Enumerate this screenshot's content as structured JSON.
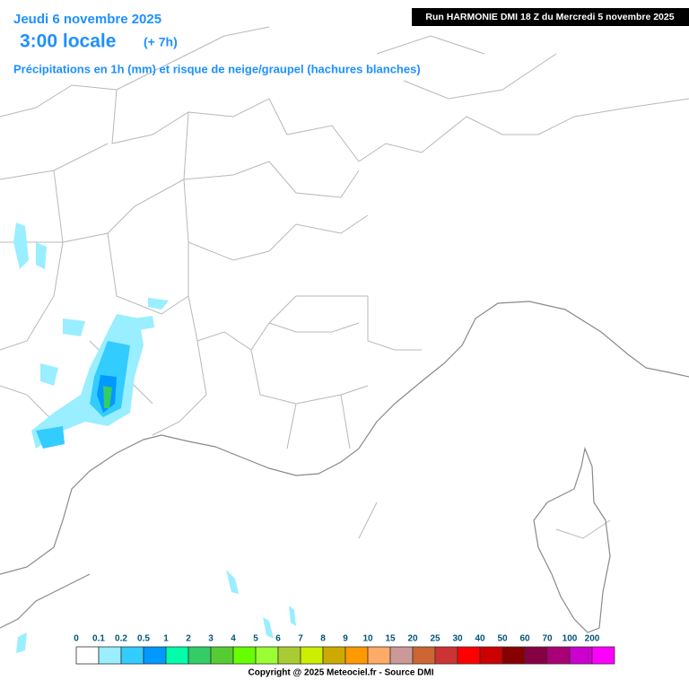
{
  "header": {
    "date": "Jeudi 6 novembre 2025",
    "time": "3:00 locale",
    "lead": "(+ 7h)",
    "subtitle": "Précipitations en 1h (mm) et risque de neige/graupel (hachures blanches)"
  },
  "run": "Run HARMONIE DMI 18 Z du Mercredi 5 novembre 2025",
  "legend": {
    "labels": [
      "0",
      "0.1",
      "0.2",
      "0.5",
      "1",
      "2",
      "3",
      "4",
      "5",
      "6",
      "7",
      "8",
      "9",
      "10",
      "15",
      "20",
      "25",
      "30",
      "40",
      "50",
      "60",
      "70",
      "100",
      "200"
    ],
    "colors": [
      "#ffffff",
      "#99eeff",
      "#33ccff",
      "#0099ff",
      "#00ffaa",
      "#33cc66",
      "#55cc33",
      "#66ff00",
      "#99ff33",
      "#aacc33",
      "#ccee00",
      "#ccaa00",
      "#ff9900",
      "#ffaa66",
      "#cc9999",
      "#cc6633",
      "#cc3333",
      "#ff0000",
      "#cc0000",
      "#880000",
      "#880044",
      "#aa0077",
      "#cc00cc",
      "#ff00ff"
    ]
  },
  "copyright": "Copyright @ 2025 Meteociel.fr - Source DMI"
}
